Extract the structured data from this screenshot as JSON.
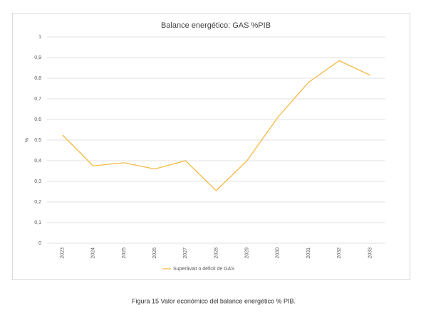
{
  "chart_data": {
    "type": "line",
    "title": "Balance energético: GAS %PIB",
    "y_label": "%",
    "categories": [
      "2023",
      "2024",
      "2025",
      "2026",
      "2027",
      "2028",
      "2029",
      "2030",
      "2031",
      "2032",
      "2033"
    ],
    "series": [
      {
        "name": "Superávait o déficit de GAS",
        "color": "#f4b942",
        "values": [
          0.525,
          0.375,
          0.39,
          0.36,
          0.4,
          0.255,
          0.4,
          0.61,
          0.78,
          0.885,
          0.815
        ]
      }
    ],
    "ylim": [
      0,
      1
    ],
    "yticks": [
      0,
      {
        "value": 0.1,
        "label": "0,1"
      },
      {
        "value": 0.2,
        "label": "0,2"
      },
      {
        "value": 0.3,
        "label": "0,3"
      },
      {
        "value": 0.4,
        "label": "0,4"
      },
      {
        "value": 0.5,
        "label": "0,5"
      },
      {
        "value": 0.6,
        "label": "0,6"
      },
      {
        "value": 0.7,
        "label": "0,7"
      },
      {
        "value": 0.8,
        "label": "0,8"
      },
      {
        "value": 0.9,
        "label": "0,9"
      },
      1
    ],
    "grid": true,
    "legend": "bottom"
  },
  "caption": "Figura 15 Valor económico del balance energético % PIB."
}
